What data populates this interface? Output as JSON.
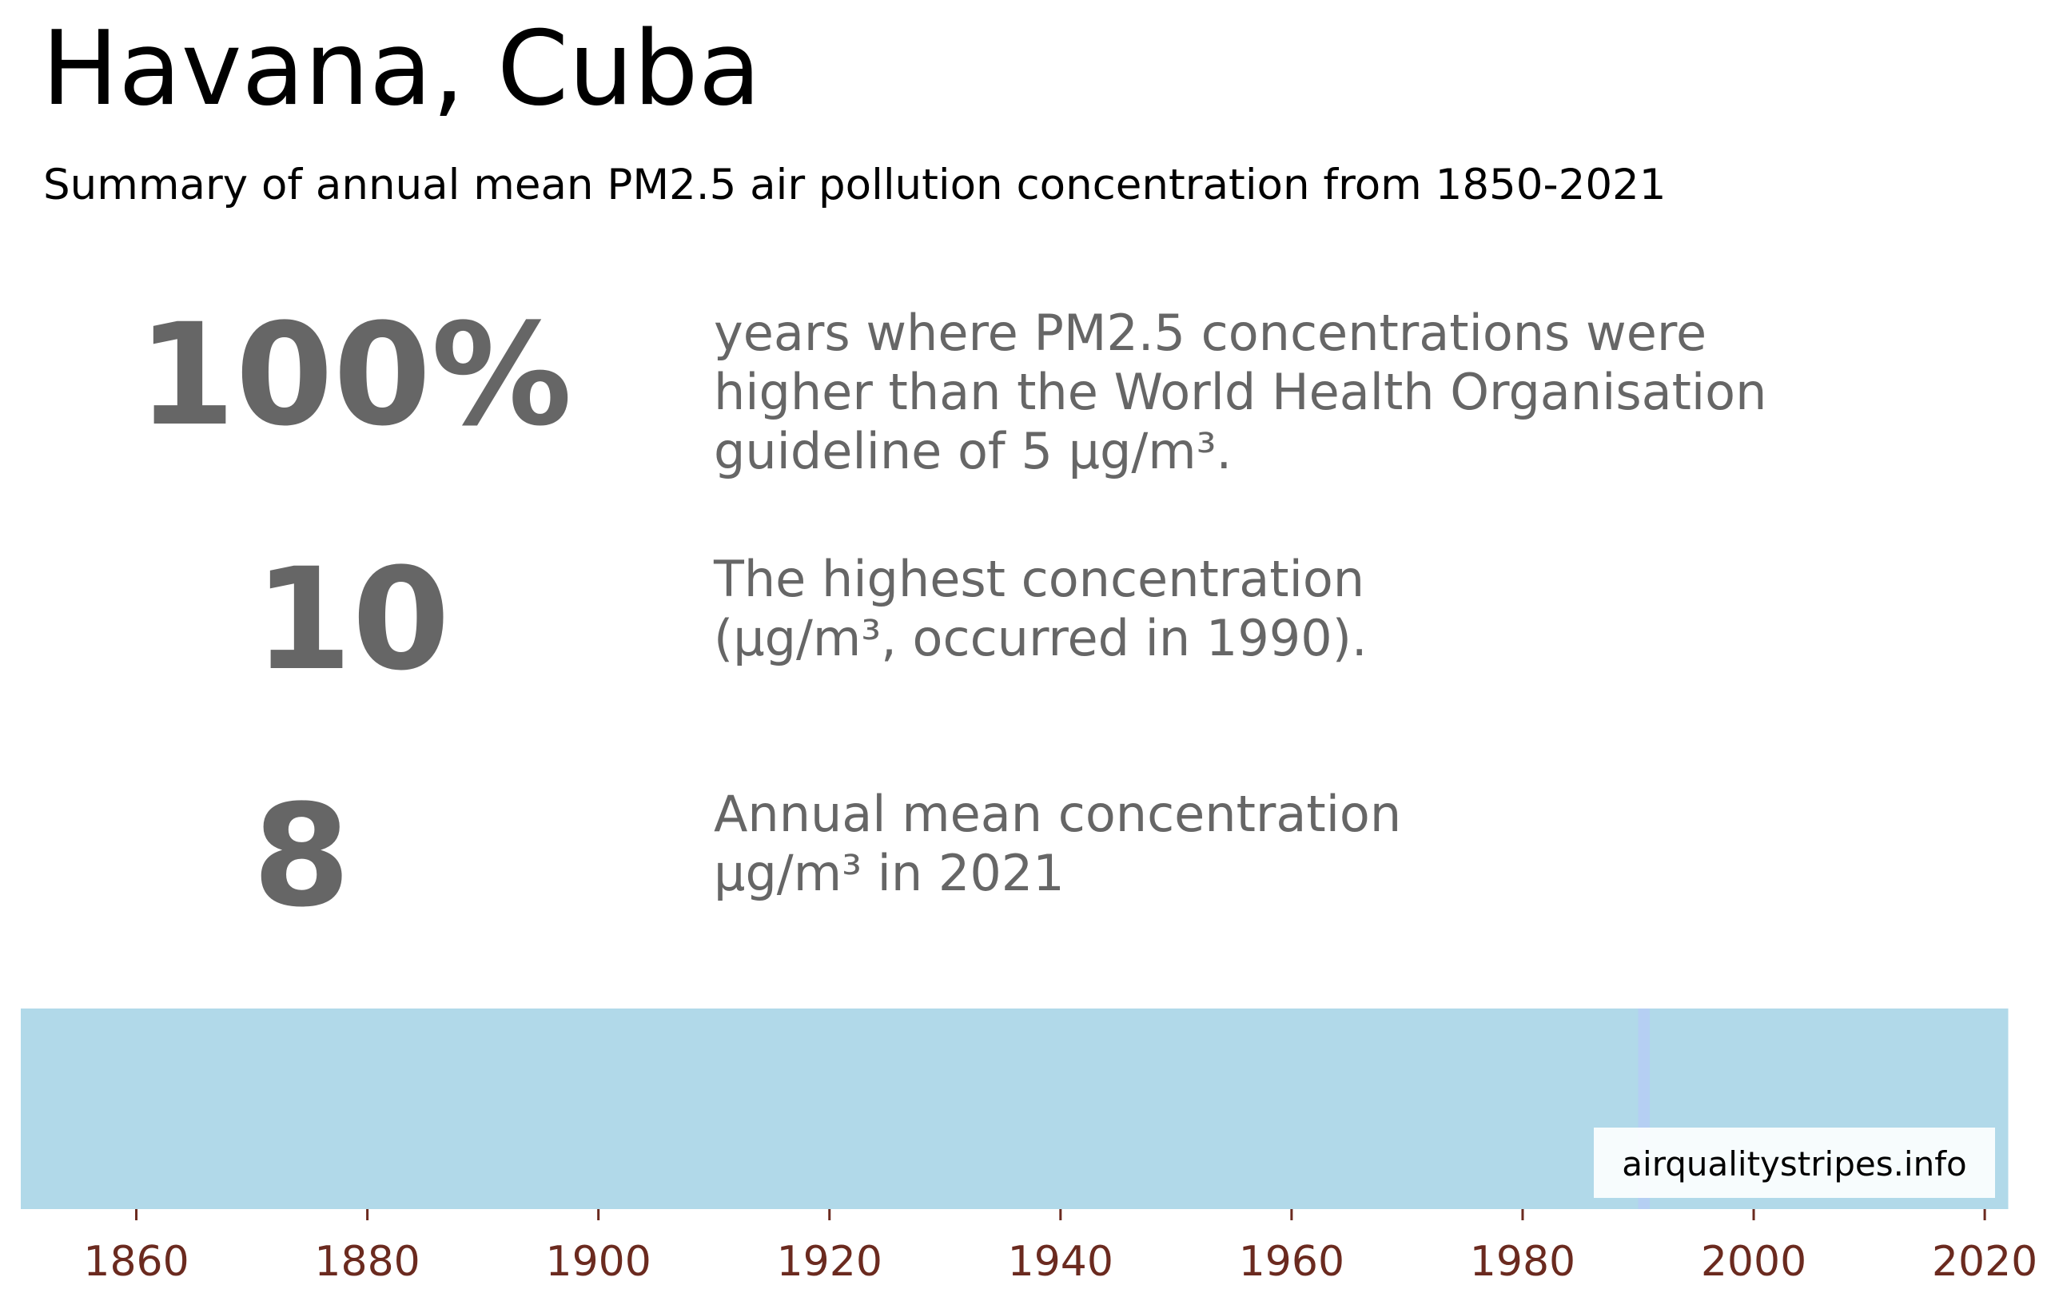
{
  "title": "Havana, Cuba",
  "subtitle": "Summary of annual mean PM2.5 air pollution concentration from 1850-2021",
  "stats": [
    {
      "value": "100%",
      "text": "years where PM2.5 concentrations were\nhigher than the World Health Organisation\nguideline of 5 µg/m³."
    },
    {
      "value": "10",
      "text": "The highest concentration\n(µg/m³, occurred in 1990)."
    },
    {
      "value": "8",
      "text": "Annual mean concentration\nµg/m³ in 2021"
    }
  ],
  "watermark": "airqualitystripes.info",
  "colors": {
    "stripe": "#b1d9e9",
    "highlight_stripe": "#b5cff3",
    "stat_text": "#666666",
    "tick_label": "#6b2a1f"
  },
  "chart_data": {
    "type": "heatmap",
    "description_of_encoding": "warming-stripes style: one vertical stripe per year colored by annual mean PM2.5",
    "x_range": [
      1850,
      2021
    ],
    "ticks": [
      1860,
      1880,
      1900,
      1920,
      1940,
      1960,
      1980,
      2000,
      2020
    ],
    "stripe_groups": [
      {
        "from": 1850,
        "to": 1989,
        "color": "#b1d9e9"
      },
      {
        "from": 1990,
        "to": 1990,
        "color": "#b5cff3"
      },
      {
        "from": 1991,
        "to": 2021,
        "color": "#b1d9e9"
      }
    ]
  }
}
